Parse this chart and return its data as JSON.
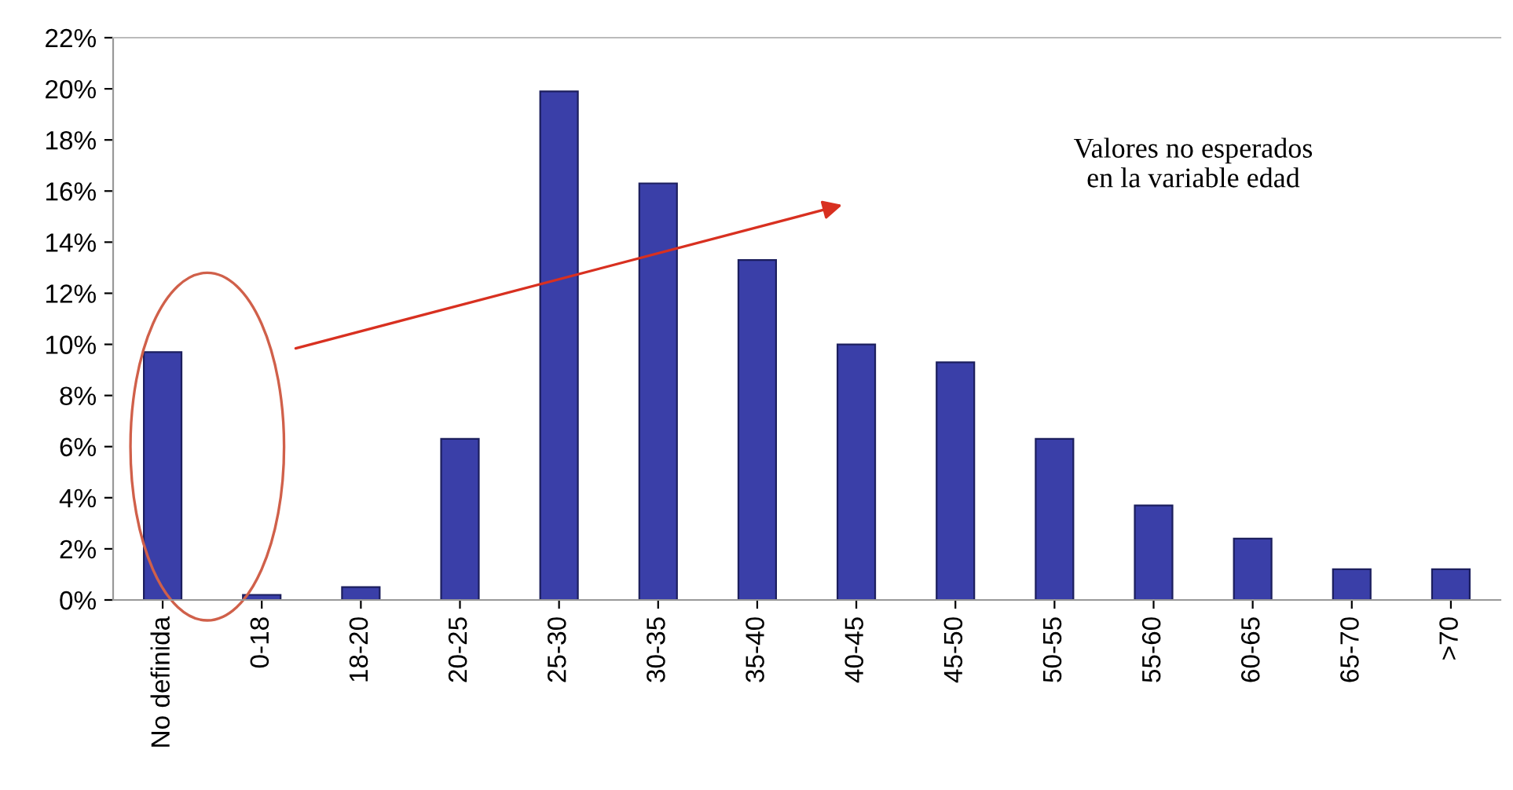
{
  "chart_data": {
    "type": "bar",
    "categories": [
      "No definida",
      "0-18",
      "18-20",
      "20-25",
      "25-30",
      "30-35",
      "35-40",
      "40-45",
      "45-50",
      "50-55",
      "55-60",
      "60-65",
      "65-70",
      ">70"
    ],
    "values": [
      9.7,
      0.2,
      0.5,
      6.3,
      19.9,
      16.3,
      13.3,
      10.0,
      9.3,
      6.3,
      3.7,
      2.4,
      1.2,
      1.2
    ],
    "color": "#3a3fa8",
    "ylim": [
      0,
      22
    ],
    "yticks": [
      {
        "value": 0,
        "label": "0%"
      },
      {
        "value": 2,
        "label": "2%"
      },
      {
        "value": 4,
        "label": "4%"
      },
      {
        "value": 6,
        "label": "6%"
      },
      {
        "value": 8,
        "label": "8%"
      },
      {
        "value": 10,
        "label": "10%"
      },
      {
        "value": 12,
        "label": "12%"
      },
      {
        "value": 14,
        "label": "14%"
      },
      {
        "value": 16,
        "label": "16%"
      },
      {
        "value": 18,
        "label": "18%"
      },
      {
        "value": 20,
        "label": "20%"
      },
      {
        "value": 22,
        "label": "22%"
      }
    ],
    "grid": false,
    "annotations": [
      "Valores no esperados\nen la variable edad"
    ]
  }
}
